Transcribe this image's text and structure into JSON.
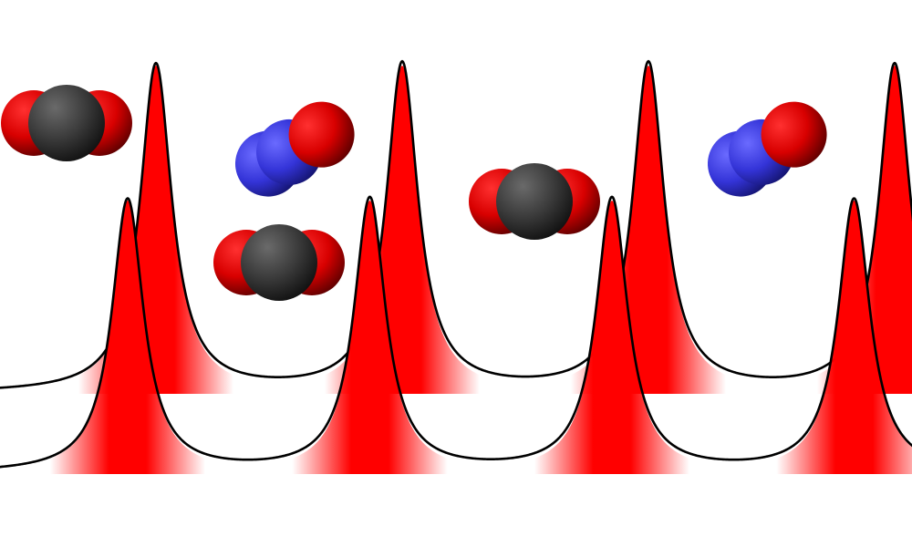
{
  "colors": {
    "background": "#ffffff",
    "peak_fill": "#ff0000",
    "peak_outline": "#000000",
    "oxygen": "#e00000",
    "carbon": "#3a3a3a",
    "nitrogen": "#3a3ae0"
  },
  "icons": {
    "carbon_dioxide": "co2-molecule-icon",
    "nitric_oxide": "no-molecule-icon"
  },
  "peaks": {
    "back_row": {
      "count": 4
    },
    "front_row": {
      "count": 4
    }
  },
  "molecules": [
    {
      "kind": "carbon_dioxide"
    },
    {
      "kind": "nitric_oxide"
    },
    {
      "kind": "carbon_dioxide"
    },
    {
      "kind": "carbon_dioxide"
    },
    {
      "kind": "nitric_oxide"
    }
  ]
}
